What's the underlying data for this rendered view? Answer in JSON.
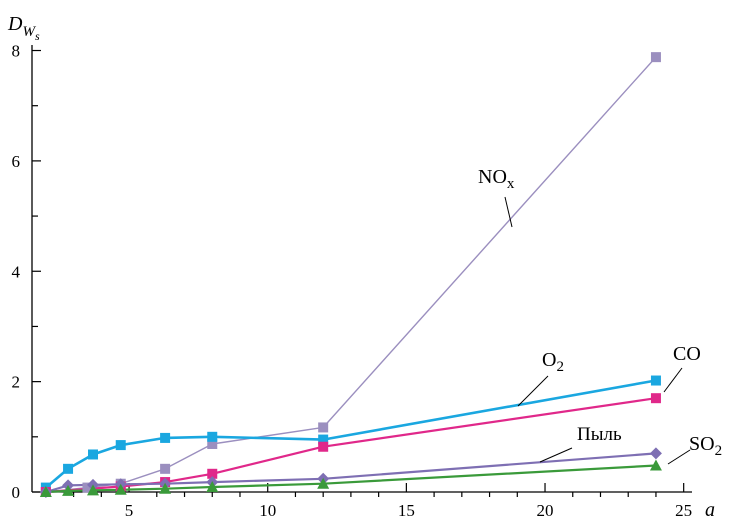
{
  "chart_data": {
    "type": "line",
    "ylabel_main": "D",
    "ylabel_sub": "W",
    "ylabel_subsub": "s",
    "xlabel": "a",
    "xlim": [
      1.5,
      25.3
    ],
    "ylim": [
      0,
      8.1
    ],
    "x_ticks": [
      5,
      10,
      15,
      20,
      25
    ],
    "y_ticks": [
      0,
      2,
      4,
      6,
      8
    ],
    "series": [
      {
        "name": "NOx",
        "label": "NO",
        "label_sub": "x",
        "color": "#9b8fbf",
        "marker": "square",
        "points": [
          [
            2.0,
            0.0
          ],
          [
            3.5,
            0.08
          ],
          [
            4.7,
            0.15
          ],
          [
            6.3,
            0.42
          ],
          [
            8.0,
            0.87
          ],
          [
            12.0,
            1.17
          ],
          [
            24.0,
            7.88
          ]
        ]
      },
      {
        "name": "CO",
        "label": "CO",
        "label_sub": "",
        "color": "#1aa7e0",
        "marker": "square",
        "points": [
          [
            2.0,
            0.08
          ],
          [
            2.8,
            0.42
          ],
          [
            3.7,
            0.68
          ],
          [
            4.7,
            0.85
          ],
          [
            6.3,
            0.98
          ],
          [
            8.0,
            1.0
          ],
          [
            12.0,
            0.95
          ],
          [
            24.0,
            2.02
          ]
        ]
      },
      {
        "name": "O2",
        "label": "O",
        "label_sub": "2",
        "color": "#e0288a",
        "marker": "square",
        "points": [
          [
            2.0,
            0.0
          ],
          [
            4.7,
            0.1
          ],
          [
            6.3,
            0.18
          ],
          [
            8.0,
            0.33
          ],
          [
            12.0,
            0.82
          ],
          [
            24.0,
            1.7
          ]
        ]
      },
      {
        "name": "Пыль",
        "label": "Пыль",
        "label_sub": "",
        "color": "#7e6fb3",
        "marker": "diamond",
        "points": [
          [
            2.0,
            0.0
          ],
          [
            2.8,
            0.12
          ],
          [
            3.7,
            0.13
          ],
          [
            4.7,
            0.14
          ],
          [
            6.3,
            0.15
          ],
          [
            8.0,
            0.18
          ],
          [
            12.0,
            0.24
          ],
          [
            24.0,
            0.7
          ]
        ]
      },
      {
        "name": "SO2",
        "label": "SO",
        "label_sub": "2",
        "color": "#3a9a3a",
        "marker": "triangle",
        "points": [
          [
            2.0,
            0.0
          ],
          [
            2.8,
            0.02
          ],
          [
            3.7,
            0.03
          ],
          [
            4.7,
            0.04
          ],
          [
            6.3,
            0.06
          ],
          [
            8.0,
            0.09
          ],
          [
            12.0,
            0.15
          ],
          [
            24.0,
            0.48
          ]
        ]
      }
    ]
  }
}
